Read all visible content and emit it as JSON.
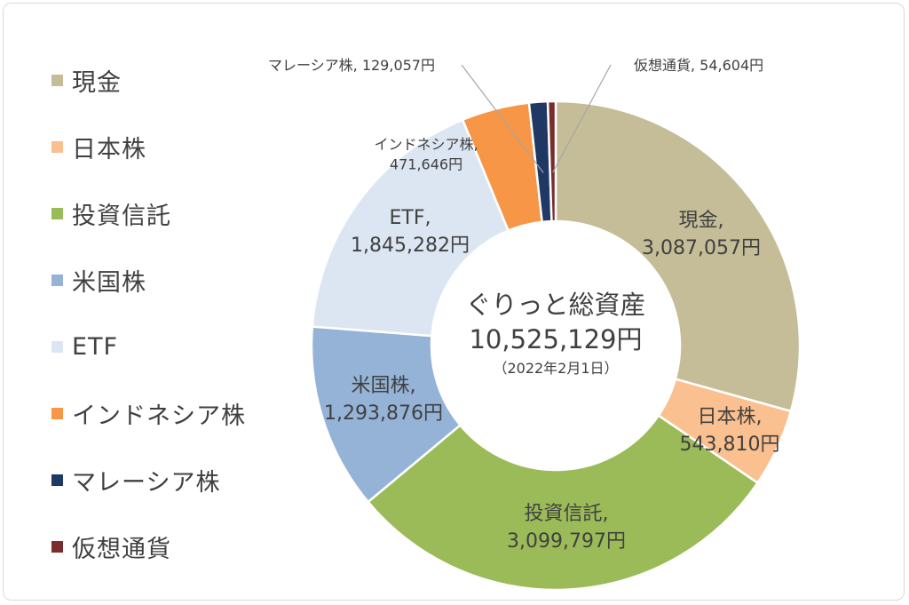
{
  "chart_data": {
    "type": "pie",
    "variant": "donut",
    "title": "ぐりっと総資産",
    "total_label": "10,525,129円",
    "date_label": "（2022年2月1日）",
    "legend_position": "left",
    "start_angle_deg": 0,
    "slices": [
      {
        "name": "現金",
        "value": 3087057,
        "value_label": "3,087,057円",
        "color": "#C4BD97"
      },
      {
        "name": "日本株",
        "value": 543810,
        "value_label": "543,810円",
        "color": "#FAC090"
      },
      {
        "name": "投資信託",
        "value": 3099797,
        "value_label": "3,099,797円",
        "color": "#9BBB59"
      },
      {
        "name": "米国株",
        "value": 1293876,
        "value_label": "1,293,876円",
        "color": "#95B3D7"
      },
      {
        "name": "ETF",
        "value": 1845282,
        "value_label": "1,845,282円",
        "color": "#DCE6F2"
      },
      {
        "name": "インドネシア株",
        "value": 471646,
        "value_label": "471,646円",
        "color": "#F79646"
      },
      {
        "name": "マレーシア株",
        "value": 129057,
        "value_label": "129,057円",
        "color": "#1F3864"
      },
      {
        "name": "仮想通貨",
        "value": 54604,
        "value_label": "54,604円",
        "color": "#7B2C2C"
      }
    ]
  }
}
